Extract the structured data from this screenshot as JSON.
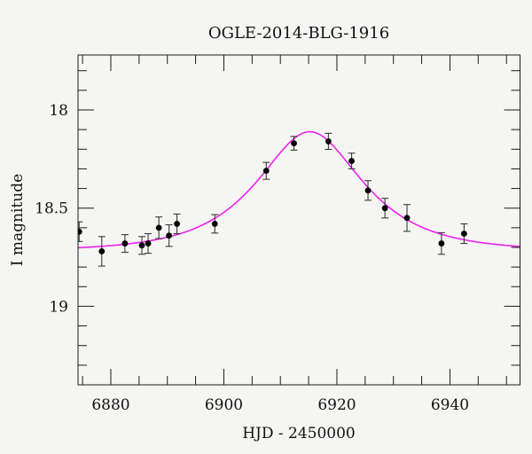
{
  "figure": {
    "title": "OGLE-2014-BLG-1916",
    "xlabel": "HJD - 2450000",
    "ylabel": "I magnitude"
  },
  "chart_data": {
    "type": "scatter",
    "title": "OGLE-2014-BLG-1916",
    "xlabel": "HJD - 2450000",
    "ylabel": "I magnitude",
    "y_axis_inverted": true,
    "xlim": [
      6874.2,
      6952.4
    ],
    "ylim": [
      17.72,
      19.4
    ],
    "x_major_ticks": [
      6880,
      6900,
      6920,
      6940
    ],
    "x_major_labels": [
      "6880",
      "6900",
      "6920",
      "6940"
    ],
    "x_minor_step": 5,
    "y_major_ticks": [
      18,
      18.5,
      19
    ],
    "y_major_labels": [
      "18",
      "18.5",
      "19"
    ],
    "y_minor_step": 0.1,
    "legend": null,
    "grid": false,
    "fit_model": {
      "kind": "paczynski_microlensing",
      "baseline_mag": 18.72,
      "t0": 6915.2,
      "tE": 14.0,
      "u0": 0.66
    },
    "points": [
      {
        "t": 6874.4,
        "mag": 18.62,
        "err": 0.05
      },
      {
        "t": 6878.4,
        "mag": 18.72,
        "err": 0.075
      },
      {
        "t": 6882.5,
        "mag": 18.68,
        "err": 0.045
      },
      {
        "t": 6885.5,
        "mag": 18.69,
        "err": 0.045
      },
      {
        "t": 6886.6,
        "mag": 18.68,
        "err": 0.05
      },
      {
        "t": 6888.5,
        "mag": 18.6,
        "err": 0.055
      },
      {
        "t": 6890.3,
        "mag": 18.64,
        "err": 0.055
      },
      {
        "t": 6891.7,
        "mag": 18.58,
        "err": 0.05
      },
      {
        "t": 6898.4,
        "mag": 18.58,
        "err": 0.047
      },
      {
        "t": 6907.5,
        "mag": 18.31,
        "err": 0.043
      },
      {
        "t": 6912.4,
        "mag": 18.17,
        "err": 0.035
      },
      {
        "t": 6918.5,
        "mag": 18.16,
        "err": 0.041
      },
      {
        "t": 6922.6,
        "mag": 18.26,
        "err": 0.04
      },
      {
        "t": 6925.5,
        "mag": 18.41,
        "err": 0.05
      },
      {
        "t": 6928.5,
        "mag": 18.5,
        "err": 0.05
      },
      {
        "t": 6932.4,
        "mag": 18.55,
        "err": 0.068
      },
      {
        "t": 6938.5,
        "mag": 18.68,
        "err": 0.055
      },
      {
        "t": 6942.5,
        "mag": 18.63,
        "err": 0.05
      }
    ],
    "colors": {
      "curve": "#ee22ee",
      "point": "#000000",
      "error_bar": "#3a3a3a",
      "axis": "#1a1a1a",
      "text": "#111111",
      "background": "#f5f5f3"
    }
  }
}
